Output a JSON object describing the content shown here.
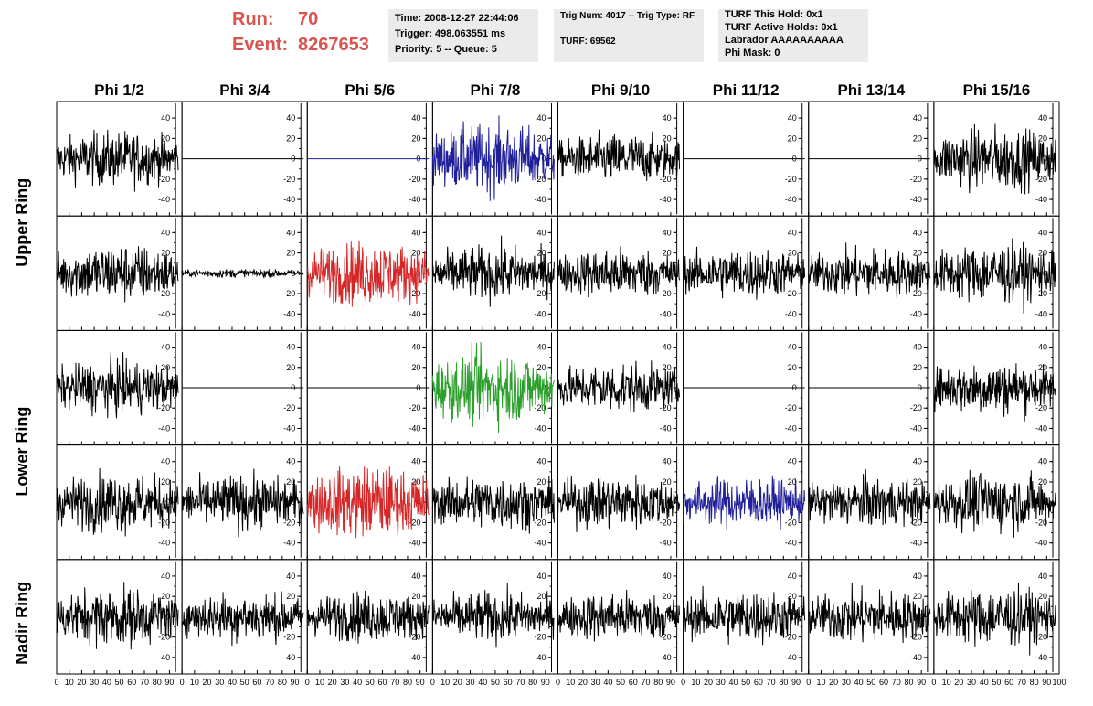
{
  "header": {
    "run_label": "Run:",
    "run_value": "70",
    "event_label": "Event:",
    "event_value": "8267653",
    "time": "Time: 2008-12-27 22:44:06",
    "trigger": "Trigger: 498.063551 ms",
    "priority": "Priority: 5 -- Queue: 5",
    "trig_num": "Trig Num: 4017 -- Trig Type: RF",
    "turf": "TURF: 69562",
    "turf_this_hold": "TURF This Hold: 0x1",
    "turf_active_holds": "TURF Active Holds: 0x1",
    "labrador": "Labrador AAAAAAAAAA",
    "phi_mask": "Phi Mask: 0"
  },
  "chart_data": {
    "type": "line",
    "columns": [
      "Phi 1/2",
      "Phi 3/4",
      "Phi 5/6",
      "Phi 7/8",
      "Phi 9/10",
      "Phi 11/12",
      "Phi 13/14",
      "Phi 15/16"
    ],
    "ring_labels": [
      {
        "label": "Upper Ring",
        "rows": [
          0,
          1
        ]
      },
      {
        "label": "Lower Ring",
        "rows": [
          2,
          3
        ]
      },
      {
        "label": "Nadir Ring",
        "rows": [
          4
        ]
      }
    ],
    "xlim": [
      0,
      100
    ],
    "ylim": [
      -50,
      50
    ],
    "xticks": [
      "0",
      "10",
      "20",
      "30",
      "40",
      "50",
      "60",
      "70",
      "80",
      "90",
      "100"
    ],
    "yticks": [
      "40",
      "20",
      "0",
      "-20",
      "-40"
    ],
    "data_range_x": [
      0,
      97
    ],
    "colors": {
      "default": "#000000",
      "blue": "#1f1f9a",
      "red": "#d62728",
      "green": "#2ca02c"
    },
    "rows": [
      [
        {
          "color": "default",
          "amplitude": 12,
          "peak": 40
        },
        {
          "color": "default",
          "amplitude": 0,
          "peak": 0
        },
        {
          "color": "blue",
          "amplitude": 0,
          "peak": 0
        },
        {
          "color": "blue",
          "amplitude": 15,
          "peak": 45
        },
        {
          "color": "default",
          "amplitude": 11,
          "peak": 30
        },
        {
          "color": "default",
          "amplitude": 0,
          "peak": 0
        },
        {
          "color": "default",
          "amplitude": 0,
          "peak": 0
        },
        {
          "color": "default",
          "amplitude": 14,
          "peak": 50
        }
      ],
      [
        {
          "color": "default",
          "amplitude": 13,
          "peak": 45
        },
        {
          "color": "default",
          "amplitude": 2,
          "peak": 4
        },
        {
          "color": "red",
          "amplitude": 14,
          "peak": 40
        },
        {
          "color": "default",
          "amplitude": 12,
          "peak": 38
        },
        {
          "color": "default",
          "amplitude": 11,
          "peak": 38
        },
        {
          "color": "default",
          "amplitude": 11,
          "peak": 35
        },
        {
          "color": "default",
          "amplitude": 11,
          "peak": 35
        },
        {
          "color": "default",
          "amplitude": 13,
          "peak": 45
        }
      ],
      [
        {
          "color": "default",
          "amplitude": 12,
          "peak": 35
        },
        {
          "color": "default",
          "amplitude": 0,
          "peak": 0
        },
        {
          "color": "default",
          "amplitude": 0,
          "peak": 0
        },
        {
          "color": "green",
          "amplitude": 16,
          "peak": 45
        },
        {
          "color": "default",
          "amplitude": 11,
          "peak": 35
        },
        {
          "color": "default",
          "amplitude": 0,
          "peak": 0
        },
        {
          "color": "default",
          "amplitude": 0,
          "peak": 0
        },
        {
          "color": "default",
          "amplitude": 12,
          "peak": 35
        }
      ],
      [
        {
          "color": "default",
          "amplitude": 13,
          "peak": 40
        },
        {
          "color": "default",
          "amplitude": 12,
          "peak": 40
        },
        {
          "color": "red",
          "amplitude": 16,
          "peak": 35
        },
        {
          "color": "default",
          "amplitude": 12,
          "peak": 40
        },
        {
          "color": "default",
          "amplitude": 12,
          "peak": 40
        },
        {
          "color": "blue",
          "amplitude": 11,
          "peak": 45
        },
        {
          "color": "default",
          "amplitude": 11,
          "peak": 38
        },
        {
          "color": "default",
          "amplitude": 13,
          "peak": 50
        }
      ],
      [
        {
          "color": "default",
          "amplitude": 13,
          "peak": 40
        },
        {
          "color": "default",
          "amplitude": 11,
          "peak": 38
        },
        {
          "color": "default",
          "amplitude": 11,
          "peak": 38
        },
        {
          "color": "default",
          "amplitude": 11,
          "peak": 38
        },
        {
          "color": "default",
          "amplitude": 11,
          "peak": 35
        },
        {
          "color": "default",
          "amplitude": 12,
          "peak": 40
        },
        {
          "color": "default",
          "amplitude": 12,
          "peak": 40
        },
        {
          "color": "default",
          "amplitude": 13,
          "peak": 45
        }
      ]
    ]
  }
}
